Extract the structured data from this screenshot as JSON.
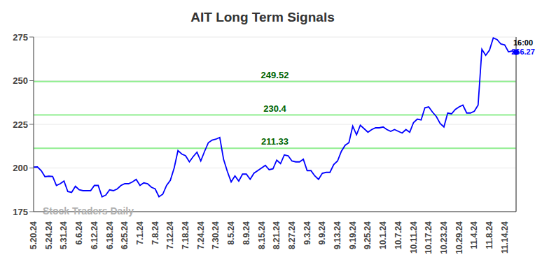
{
  "chart_data": {
    "type": "line",
    "title": "AIT Long Term Signals",
    "watermark": "Stock Traders Daily",
    "last_label": {
      "time": "16:00",
      "value": 266.27
    },
    "signal_lines": [
      249.52,
      230.4,
      211.33
    ],
    "color": "#0000ff",
    "grid": true,
    "ylim": [
      175,
      275
    ],
    "yticks": [
      175,
      200,
      225,
      250,
      275
    ],
    "categories": [
      "5.20.24",
      null,
      null,
      null,
      "5.24.24",
      null,
      null,
      null,
      "5.31.24",
      null,
      null,
      null,
      "6.6.24",
      null,
      null,
      null,
      "6.12.24",
      null,
      null,
      null,
      "6.18.24",
      null,
      null,
      null,
      "6.25.24",
      null,
      null,
      null,
      "7.1.24",
      null,
      null,
      null,
      "7.8.24",
      null,
      null,
      null,
      "7.12.24",
      null,
      null,
      null,
      "7.18.24",
      null,
      null,
      null,
      "7.24.24",
      null,
      null,
      null,
      "7.30.24",
      null,
      null,
      null,
      "8.5.24",
      null,
      null,
      null,
      "8.9.24",
      null,
      null,
      null,
      "8.15.24",
      null,
      null,
      null,
      "8.21.24",
      null,
      null,
      null,
      "8.27.24",
      null,
      null,
      null,
      "9.3.24",
      null,
      null,
      null,
      "9.9.24",
      null,
      null,
      null,
      "9.13.24",
      null,
      null,
      null,
      "9.19.24",
      null,
      null,
      null,
      "9.25.24",
      null,
      null,
      null,
      "10.1.24",
      null,
      null,
      null,
      "10.7.24",
      null,
      null,
      null,
      "10.11.24",
      null,
      null,
      null,
      "10.17.24",
      null,
      null,
      null,
      "10.23.24",
      null,
      null,
      null,
      "10.29.24",
      null,
      null,
      null,
      "11.4.24",
      null,
      null,
      null,
      "11.8.24",
      null,
      null,
      null,
      "11.14.24",
      null,
      null,
      null
    ],
    "values": [
      200.5,
      200.6,
      198.5,
      195.0,
      195.3,
      195.2,
      190.0,
      191.0,
      192.5,
      186.5,
      186.0,
      189.5,
      187.5,
      187.0,
      187.0,
      187.0,
      190.0,
      190.0,
      183.5,
      184.5,
      187.5,
      187.0,
      188.0,
      190.0,
      191.0,
      191.0,
      192.0,
      193.5,
      190.0,
      191.5,
      191.0,
      189.0,
      188.0,
      183.5,
      185.0,
      190.0,
      193.0,
      200.0,
      210.0,
      208.0,
      207.0,
      203.5,
      206.5,
      209.0,
      204.0,
      209.5,
      214.5,
      216.0,
      216.5,
      217.5,
      205.0,
      198.0,
      192.0,
      195.5,
      192.5,
      196.5,
      196.5,
      193.5,
      197.0,
      198.5,
      200.0,
      201.5,
      199.0,
      199.5,
      204.5,
      202.5,
      207.5,
      207.0,
      204.0,
      203.5,
      203.5,
      205.0,
      198.5,
      198.5,
      195.5,
      193.5,
      197.0,
      197.5,
      197.5,
      202.0,
      204.0,
      209.5,
      213.0,
      214.5,
      224.0,
      219.0,
      224.5,
      222.5,
      220.5,
      222.0,
      223.0,
      223.0,
      223.5,
      222.0,
      221.0,
      222.0,
      221.0,
      220.0,
      222.0,
      220.5,
      226.0,
      228.0,
      227.5,
      234.5,
      235.0,
      232.0,
      229.5,
      225.5,
      223.5,
      231.5,
      231.0,
      233.5,
      235.0,
      236.0,
      231.5,
      231.5,
      232.5,
      236.0,
      268.0,
      264.5,
      267.5,
      274.5,
      273.5,
      271.0,
      270.5,
      266.5,
      267.0,
      266.27
    ]
  }
}
